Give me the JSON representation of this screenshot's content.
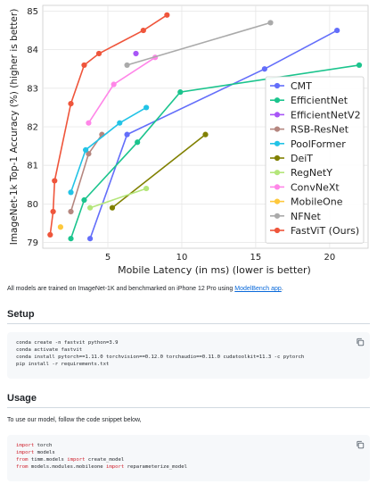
{
  "chart_data": {
    "type": "scatter",
    "title": "",
    "xlabel": "Mobile Latency (in ms) (lower is better)",
    "ylabel": "ImageNet-1k Top-1 Accuracy (%) (higher is better)",
    "xlim": [
      0.6,
      22.6
    ],
    "ylim": [
      78.85,
      85.15
    ],
    "xticks": [
      5,
      10,
      15,
      20
    ],
    "yticks": [
      79,
      80,
      81,
      82,
      83,
      84,
      85
    ],
    "grid": true,
    "legend_position": "right",
    "series": [
      {
        "name": "CMT",
        "color": "#636efa",
        "x": [
          3.8,
          6.3,
          15.6,
          20.5
        ],
        "y": [
          79.1,
          81.8,
          83.5,
          84.5
        ]
      },
      {
        "name": "EfficientNet",
        "color": "#1bc48d",
        "x": [
          2.5,
          3.4,
          7.0,
          9.9,
          22.0
        ],
        "y": [
          79.1,
          80.1,
          81.6,
          82.9,
          83.6
        ]
      },
      {
        "name": "EfficientNetV2",
        "color": "#a855f7",
        "x": [
          6.9
        ],
        "y": [
          83.9
        ]
      },
      {
        "name": "RSB-ResNet",
        "color": "#b5867f",
        "x": [
          2.5,
          3.7,
          4.6
        ],
        "y": [
          79.8,
          81.3,
          81.8
        ]
      },
      {
        "name": "PoolFormer",
        "color": "#22c3e6",
        "x": [
          2.5,
          3.5,
          5.8,
          7.6
        ],
        "y": [
          80.3,
          81.4,
          82.1,
          82.5
        ]
      },
      {
        "name": "DeiT",
        "color": "#808000",
        "x": [
          5.3,
          11.6
        ],
        "y": [
          79.9,
          81.8
        ]
      },
      {
        "name": "RegNetY",
        "color": "#b4e67a",
        "x": [
          3.8,
          7.6
        ],
        "y": [
          79.9,
          80.4
        ]
      },
      {
        "name": "ConvNeXt",
        "color": "#ff86e8",
        "x": [
          3.7,
          5.4,
          8.2
        ],
        "y": [
          82.1,
          83.1,
          83.8
        ]
      },
      {
        "name": "MobileOne",
        "color": "#fec83c",
        "x": [
          1.8
        ],
        "y": [
          79.4
        ]
      },
      {
        "name": "NFNet",
        "color": "#aaaaaa",
        "x": [
          6.3,
          16.0
        ],
        "y": [
          83.6,
          84.7
        ]
      },
      {
        "name": "FastViT (Ours)",
        "color": "#ef553b",
        "x": [
          1.1,
          1.3,
          1.4,
          2.5,
          3.4,
          4.4,
          7.4,
          9.0
        ],
        "y": [
          79.2,
          79.8,
          80.6,
          82.6,
          83.6,
          83.9,
          84.5,
          84.9
        ]
      }
    ]
  },
  "caption": {
    "text": "All models are trained on ImageNet-1K and benchmarked on iPhone 12 Pro using ",
    "link": "ModelBench app",
    "end": "."
  },
  "setup": {
    "heading": "Setup",
    "lines": [
      "conda create -n fastvit python=3.9",
      "conda activate fastvit",
      "conda install pytorch==1.11.0 torchvision==0.12.0 torchaudio==0.11.0 cudatoolkit=11.3 -c pytorch",
      "pip install -r requirements.txt"
    ]
  },
  "usage": {
    "heading": "Usage",
    "intro": "To use our model, follow the code snippet below,",
    "lines": [
      [
        {
          "t": "import",
          "k": true
        },
        {
          "t": " torch"
        }
      ],
      [
        {
          "t": "import",
          "k": true
        },
        {
          "t": " models"
        }
      ],
      [
        {
          "t": "from",
          "k": true
        },
        {
          "t": " timm.models "
        },
        {
          "t": "import",
          "k": true
        },
        {
          "t": " create_model"
        }
      ],
      [
        {
          "t": "from",
          "k": true
        },
        {
          "t": " models.modules.mobileone "
        },
        {
          "t": "import",
          "k": true
        },
        {
          "t": " reparameterize_model"
        }
      ]
    ]
  },
  "icons": {
    "copy": "copy-icon"
  }
}
